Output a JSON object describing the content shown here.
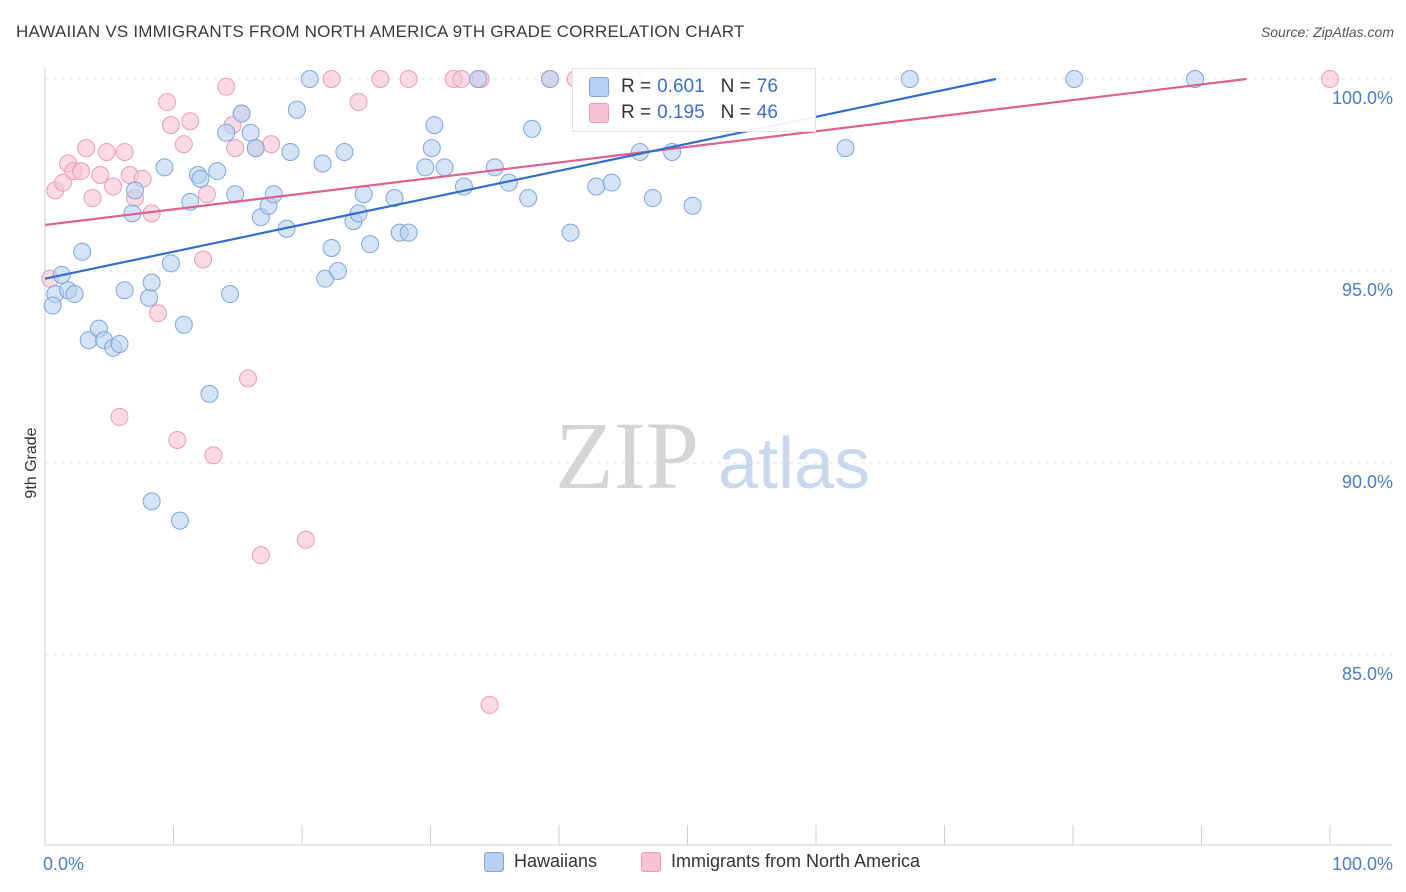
{
  "header": {
    "title": "HAWAIIAN VS IMMIGRANTS FROM NORTH AMERICA 9TH GRADE CORRELATION CHART",
    "source": "Source: ZipAtlas.com"
  },
  "watermark": {
    "zip": "ZIP",
    "atlas": "atlas"
  },
  "legend": {
    "series1": {
      "r_label": "R =",
      "r_value": "0.601",
      "n_label": "N =",
      "n_value": "76"
    },
    "series2": {
      "r_label": "R =",
      "r_value": "0.195",
      "n_label": "N =",
      "n_value": "46"
    }
  },
  "bottom_legend": {
    "series1": "Hawaiians",
    "series2": "Immigrants from North America"
  },
  "colors": {
    "series1_fill": "#b8d0f0",
    "series1_stroke": "#7ea6dd",
    "series1_line": "#2f6fcf",
    "series2_fill": "#f7c3d3",
    "series2_stroke": "#ee9ab6",
    "series2_line": "#e0608f",
    "tick_text": "#4a7cc9",
    "grid": "#e3e3e3"
  },
  "chart_data": {
    "type": "scatter",
    "title": "HAWAIIAN VS IMMIGRANTS FROM NORTH AMERICA 9TH GRADE CORRELATION CHART",
    "xlabel": "",
    "ylabel": "9th Grade",
    "xlim": [
      0,
      100
    ],
    "ylim": [
      80.5,
      100.5
    ],
    "x_tick_labels": [
      "0.0%",
      "100.0%"
    ],
    "y_ticks": [
      85,
      90,
      95,
      100
    ],
    "y_tick_labels": [
      "85.0%",
      "90.0%",
      "95.0%",
      "100.0%"
    ],
    "grid": "horizontal dashed",
    "legend_position": "top-center",
    "series": [
      {
        "name": "Hawaiians",
        "r": 0.601,
        "n": 76,
        "trend": {
          "x": [
            0,
            74
          ],
          "y": [
            94.8,
            100.0
          ]
        },
        "points": [
          [
            0.8,
            94.4
          ],
          [
            1.3,
            94.9
          ],
          [
            0.6,
            94.1
          ],
          [
            1.8,
            94.5
          ],
          [
            2.3,
            94.4
          ],
          [
            2.9,
            95.5
          ],
          [
            3.4,
            93.2
          ],
          [
            4.2,
            93.5
          ],
          [
            4.6,
            93.2
          ],
          [
            5.3,
            93.0
          ],
          [
            5.8,
            93.1
          ],
          [
            6.2,
            94.5
          ],
          [
            7.0,
            97.1
          ],
          [
            6.8,
            96.5
          ],
          [
            8.1,
            94.3
          ],
          [
            8.3,
            94.7
          ],
          [
            9.3,
            97.7
          ],
          [
            9.8,
            95.2
          ],
          [
            10.8,
            93.6
          ],
          [
            11.3,
            96.8
          ],
          [
            11.9,
            97.5
          ],
          [
            12.1,
            97.4
          ],
          [
            12.8,
            91.8
          ],
          [
            13.4,
            97.6
          ],
          [
            14.1,
            98.6
          ],
          [
            14.4,
            94.4
          ],
          [
            14.8,
            97.0
          ],
          [
            15.3,
            99.1
          ],
          [
            16.0,
            98.6
          ],
          [
            16.4,
            98.2
          ],
          [
            16.8,
            96.4
          ],
          [
            17.4,
            96.7
          ],
          [
            17.8,
            97.0
          ],
          [
            18.8,
            96.1
          ],
          [
            19.1,
            98.1
          ],
          [
            19.6,
            99.2
          ],
          [
            20.6,
            100.0
          ],
          [
            21.6,
            97.8
          ],
          [
            21.8,
            94.8
          ],
          [
            22.3,
            95.6
          ],
          [
            22.8,
            95.0
          ],
          [
            23.3,
            98.1
          ],
          [
            24.0,
            96.3
          ],
          [
            24.4,
            96.5
          ],
          [
            24.8,
            97.0
          ],
          [
            25.3,
            95.7
          ],
          [
            27.2,
            96.9
          ],
          [
            27.6,
            96.0
          ],
          [
            28.3,
            96.0
          ],
          [
            29.6,
            97.7
          ],
          [
            30.1,
            98.2
          ],
          [
            30.3,
            98.8
          ],
          [
            31.1,
            97.7
          ],
          [
            32.6,
            97.2
          ],
          [
            33.7,
            100.0
          ],
          [
            35.0,
            97.7
          ],
          [
            36.1,
            97.3
          ],
          [
            37.6,
            96.9
          ],
          [
            37.9,
            98.7
          ],
          [
            39.3,
            100.0
          ],
          [
            40.9,
            96.0
          ],
          [
            42.9,
            97.2
          ],
          [
            44.1,
            97.3
          ],
          [
            45.8,
            100.0
          ],
          [
            46.3,
            98.1
          ],
          [
            47.3,
            96.9
          ],
          [
            48.8,
            98.1
          ],
          [
            50.4,
            96.7
          ],
          [
            54.8,
            100.0
          ],
          [
            56.6,
            100.0
          ],
          [
            62.3,
            98.2
          ],
          [
            67.3,
            100.0
          ],
          [
            80.1,
            100.0
          ],
          [
            89.5,
            100.0
          ],
          [
            8.3,
            89.0
          ],
          [
            10.5,
            88.5
          ]
        ]
      },
      {
        "name": "Immigrants from North America",
        "r": 0.195,
        "n": 46,
        "trend": {
          "x": [
            0,
            100
          ],
          "y": [
            96.2,
            100.0
          ]
        },
        "points": [
          [
            0.4,
            94.8
          ],
          [
            0.8,
            97.1
          ],
          [
            1.4,
            97.3
          ],
          [
            1.8,
            97.8
          ],
          [
            2.2,
            97.6
          ],
          [
            2.8,
            97.6
          ],
          [
            3.2,
            98.2
          ],
          [
            3.7,
            96.9
          ],
          [
            4.3,
            97.5
          ],
          [
            4.8,
            98.1
          ],
          [
            5.3,
            97.2
          ],
          [
            5.8,
            91.2
          ],
          [
            6.2,
            98.1
          ],
          [
            6.6,
            97.5
          ],
          [
            7.0,
            96.9
          ],
          [
            7.6,
            97.4
          ],
          [
            8.3,
            96.5
          ],
          [
            8.8,
            93.9
          ],
          [
            9.5,
            99.4
          ],
          [
            9.8,
            98.8
          ],
          [
            10.3,
            90.6
          ],
          [
            10.8,
            98.3
          ],
          [
            11.3,
            98.9
          ],
          [
            12.3,
            95.3
          ],
          [
            12.6,
            97.0
          ],
          [
            13.1,
            90.2
          ],
          [
            14.1,
            99.8
          ],
          [
            14.6,
            98.8
          ],
          [
            14.8,
            98.2
          ],
          [
            15.3,
            99.1
          ],
          [
            15.8,
            92.2
          ],
          [
            16.4,
            98.2
          ],
          [
            16.8,
            87.6
          ],
          [
            17.6,
            98.3
          ],
          [
            20.3,
            88.0
          ],
          [
            22.3,
            100.0
          ],
          [
            24.4,
            99.4
          ],
          [
            26.1,
            100.0
          ],
          [
            28.3,
            100.0
          ],
          [
            31.8,
            100.0
          ],
          [
            32.4,
            100.0
          ],
          [
            33.9,
            100.0
          ],
          [
            34.6,
            83.7
          ],
          [
            39.3,
            100.0
          ],
          [
            41.3,
            100.0
          ],
          [
            100.0,
            100.0
          ]
        ]
      }
    ]
  }
}
